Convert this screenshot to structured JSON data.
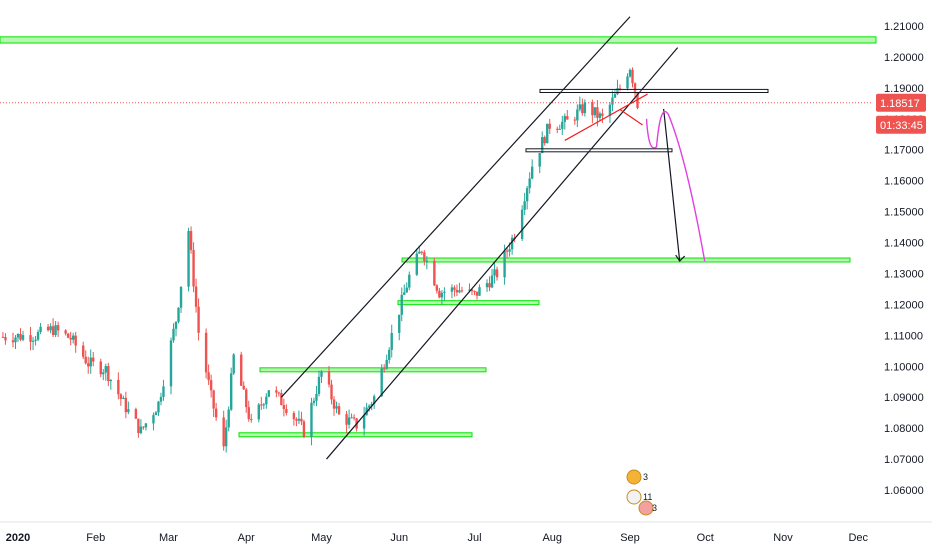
{
  "chart_data": {
    "type": "candlestick",
    "instrument_hint": "",
    "y_range": [
      1.054,
      1.214
    ],
    "y_ticks": [
      "1.21000",
      "1.20000",
      "1.19000",
      "1.18000",
      "1.17000",
      "1.16000",
      "1.15000",
      "1.14000",
      "1.13000",
      "1.12000",
      "1.11000",
      "1.10000",
      "1.09000",
      "1.08000",
      "1.07000",
      "1.06000"
    ],
    "y_tick_values": [
      1.21,
      1.2,
      1.19,
      1.18,
      1.17,
      1.16,
      1.15,
      1.14,
      1.13,
      1.12,
      1.11,
      1.1,
      1.09,
      1.08,
      1.07,
      1.06
    ],
    "x_ticks": [
      "2020",
      "Feb",
      "Mar",
      "Apr",
      "May",
      "Jun",
      "Jul",
      "Aug",
      "Sep",
      "Oct",
      "Nov",
      "Dec"
    ],
    "x_tick_dates": [
      "2020-01-01",
      "2020-02-01",
      "2020-03-01",
      "2020-04-01",
      "2020-05-01",
      "2020-06-01",
      "2020-07-01",
      "2020-08-01",
      "2020-09-01",
      "2020-10-01",
      "2020-11-01",
      "2020-12-01"
    ],
    "last_price": "1.18517",
    "countdown": "01:33:45",
    "closes": [
      [
        "2019-12-26",
        1.1095
      ],
      [
        "2020-01-08",
        1.11
      ],
      [
        "2020-01-15",
        1.112
      ],
      [
        "2020-01-22",
        1.109
      ],
      [
        "2020-01-29",
        1.101
      ],
      [
        "2020-02-05",
        1.099
      ],
      [
        "2020-02-12",
        1.088
      ],
      [
        "2020-02-19",
        1.079
      ],
      [
        "2020-02-26",
        1.088
      ],
      [
        "2020-03-04",
        1.115
      ],
      [
        "2020-03-09",
        1.144
      ],
      [
        "2020-03-13",
        1.111
      ],
      [
        "2020-03-18",
        1.09
      ],
      [
        "2020-03-23",
        1.073
      ],
      [
        "2020-03-27",
        1.103
      ],
      [
        "2020-04-03",
        1.081
      ],
      [
        "2020-04-10",
        1.093
      ],
      [
        "2020-04-17",
        1.087
      ],
      [
        "2020-04-24",
        1.079
      ],
      [
        "2020-05-01",
        1.098
      ],
      [
        "2020-05-08",
        1.084
      ],
      [
        "2020-05-15",
        1.081
      ],
      [
        "2020-05-22",
        1.09
      ],
      [
        "2020-05-29",
        1.11
      ],
      [
        "2020-06-05",
        1.129
      ],
      [
        "2020-06-10",
        1.138
      ],
      [
        "2020-06-17",
        1.124
      ],
      [
        "2020-06-24",
        1.125
      ],
      [
        "2020-07-01",
        1.123
      ],
      [
        "2020-07-10",
        1.13
      ],
      [
        "2020-07-17",
        1.143
      ],
      [
        "2020-07-24",
        1.165
      ],
      [
        "2020-07-31",
        1.178
      ],
      [
        "2020-08-07",
        1.179
      ],
      [
        "2020-08-14",
        1.184
      ],
      [
        "2020-08-21",
        1.18
      ],
      [
        "2020-08-28",
        1.19
      ],
      [
        "2020-09-01",
        1.197
      ],
      [
        "2020-09-04",
        1.185
      ]
    ],
    "drawings": {
      "support_resistance_zones": [
        {
          "y": [
            1.2045,
            1.2065
          ]
        },
        {
          "y": [
            1.1343,
            1.135
          ]
        },
        {
          "y": [
            1.1205,
            1.1212
          ]
        },
        {
          "y": [
            1.0985,
            1.0995
          ]
        },
        {
          "y": [
            1.0775,
            1.0785
          ]
        }
      ],
      "channel_lines": [
        {
          "from": [
            "2020-04-15",
            1.09
          ],
          "to": [
            "2020-09-01",
            1.213
          ]
        },
        {
          "from": [
            "2020-05-03",
            1.07
          ],
          "to": [
            "2020-09-20",
            1.203
          ]
        }
      ],
      "range_boxes": [
        {
          "y": [
            1.1885,
            1.1895
          ]
        },
        {
          "y": [
            1.1695,
            1.1703
          ]
        }
      ],
      "projection_arrow": {
        "from": [
          "2020-09-16",
          1.178
        ],
        "to": [
          "2020-09-24",
          1.134
        ]
      },
      "pink_curve_end": [
        "2020-09-26",
        1.134
      ]
    },
    "events": [
      {
        "label": "3"
      },
      {
        "label": "11"
      },
      {
        "label": "3"
      }
    ],
    "colors": {
      "up": "#26a69a",
      "down": "#ef5350",
      "zone": "#00e600",
      "zone_fill": "#b7f5b0",
      "price_line": "#ef5350",
      "projection_curve": "#e040e0"
    },
    "grid": false,
    "title": "",
    "xlabel": "",
    "ylabel": ""
  }
}
